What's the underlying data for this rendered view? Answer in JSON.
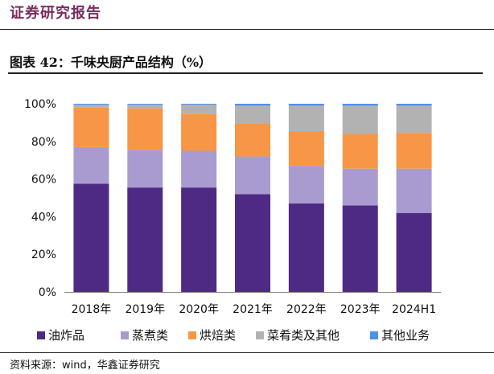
{
  "header": {
    "title": "证券研究报告"
  },
  "figure": {
    "title": "图表 42：千味央厨产品结构（%）"
  },
  "source": "资料来源：wind，华鑫证券研究",
  "chart_data": {
    "type": "bar",
    "stacked": true,
    "title": "千味央厨产品结构（%）",
    "xlabel": "",
    "ylabel": "",
    "categories": [
      "2018年",
      "2019年",
      "2020年",
      "2021年",
      "2022年",
      "2023年",
      "2024H1"
    ],
    "ylim": [
      0,
      100
    ],
    "yticks": [
      0,
      20,
      40,
      60,
      80,
      100
    ],
    "ytick_labels": [
      "0%",
      "20%",
      "40%",
      "60%",
      "80%",
      "100%"
    ],
    "legend_position": "bottom",
    "series": [
      {
        "name": "油炸品",
        "color": "#4e2a84",
        "values": [
          57.5,
          55.5,
          55.5,
          52,
          47,
          46,
          42
        ]
      },
      {
        "name": "蒸煮类",
        "color": "#a99bd0",
        "values": [
          19.5,
          20,
          19.5,
          20,
          20,
          19.5,
          23.5
        ]
      },
      {
        "name": "烘焙类",
        "color": "#f79646",
        "values": [
          21,
          22,
          19.5,
          17.5,
          18.5,
          18.5,
          19
        ]
      },
      {
        "name": "菜肴类及其他",
        "color": "#b2b2b2",
        "values": [
          1.5,
          2,
          5,
          9.5,
          13.5,
          15,
          14.5
        ]
      },
      {
        "name": "其他业务",
        "color": "#4f8fe8",
        "values": [
          0.5,
          0.5,
          0.5,
          1,
          1,
          1,
          1
        ]
      }
    ]
  }
}
